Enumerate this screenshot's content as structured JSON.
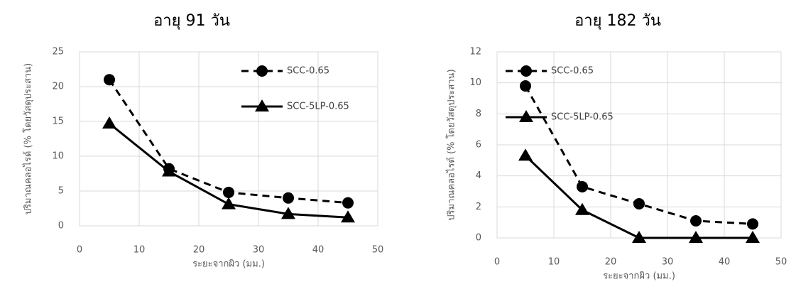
{
  "chart_data": [
    {
      "type": "line",
      "title": "อายุ 91 วัน",
      "xlabel": "ระยะจากผิว (มม.)",
      "ylabel": "ปริมาณคลอไรด์ (% โดยวัสดุประสาน)",
      "x": [
        5,
        15,
        25,
        35,
        45
      ],
      "xlim": [
        0,
        50
      ],
      "xticks": [
        0,
        10,
        20,
        30,
        40,
        50
      ],
      "ylim": [
        0,
        25
      ],
      "yticks": [
        0,
        5,
        10,
        15,
        20,
        25
      ],
      "grid": true,
      "legend": "upper right",
      "series": [
        {
          "name": "SCC-0.65",
          "color": "#000000",
          "marker": "circle",
          "dashed": true,
          "values": [
            21,
            8.2,
            4.8,
            4,
            3.3
          ]
        },
        {
          "name": "SCC-5LP-0.65",
          "color": "#000000",
          "marker": "triangle",
          "dashed": false,
          "values": [
            14.7,
            7.8,
            3.1,
            1.7,
            1.2
          ]
        }
      ]
    },
    {
      "type": "line",
      "title": "อายุ 182 วัน",
      "xlabel": "ระยะจากผิว (มม.)",
      "ylabel": "ปริมาณคลอไรด์ (% โดยวัสดุประสาน)",
      "x": [
        5,
        15,
        25,
        35,
        45
      ],
      "xlim": [
        0,
        50
      ],
      "xticks": [
        0,
        10,
        20,
        30,
        40,
        50
      ],
      "ylim": [
        0,
        12
      ],
      "yticks": [
        0,
        2,
        4,
        6,
        8,
        10,
        12
      ],
      "grid": true,
      "legend": "upper right",
      "series": [
        {
          "name": "SCC-0.65",
          "color": "#000000",
          "marker": "circle",
          "dashed": true,
          "values": [
            9.8,
            3.3,
            2.2,
            1.1,
            0.9
          ]
        },
        {
          "name": "SCC-5LP-0.65",
          "color": "#000000",
          "marker": "triangle",
          "dashed": false,
          "values": [
            5.3,
            1.8,
            0,
            0,
            0
          ]
        }
      ]
    }
  ]
}
